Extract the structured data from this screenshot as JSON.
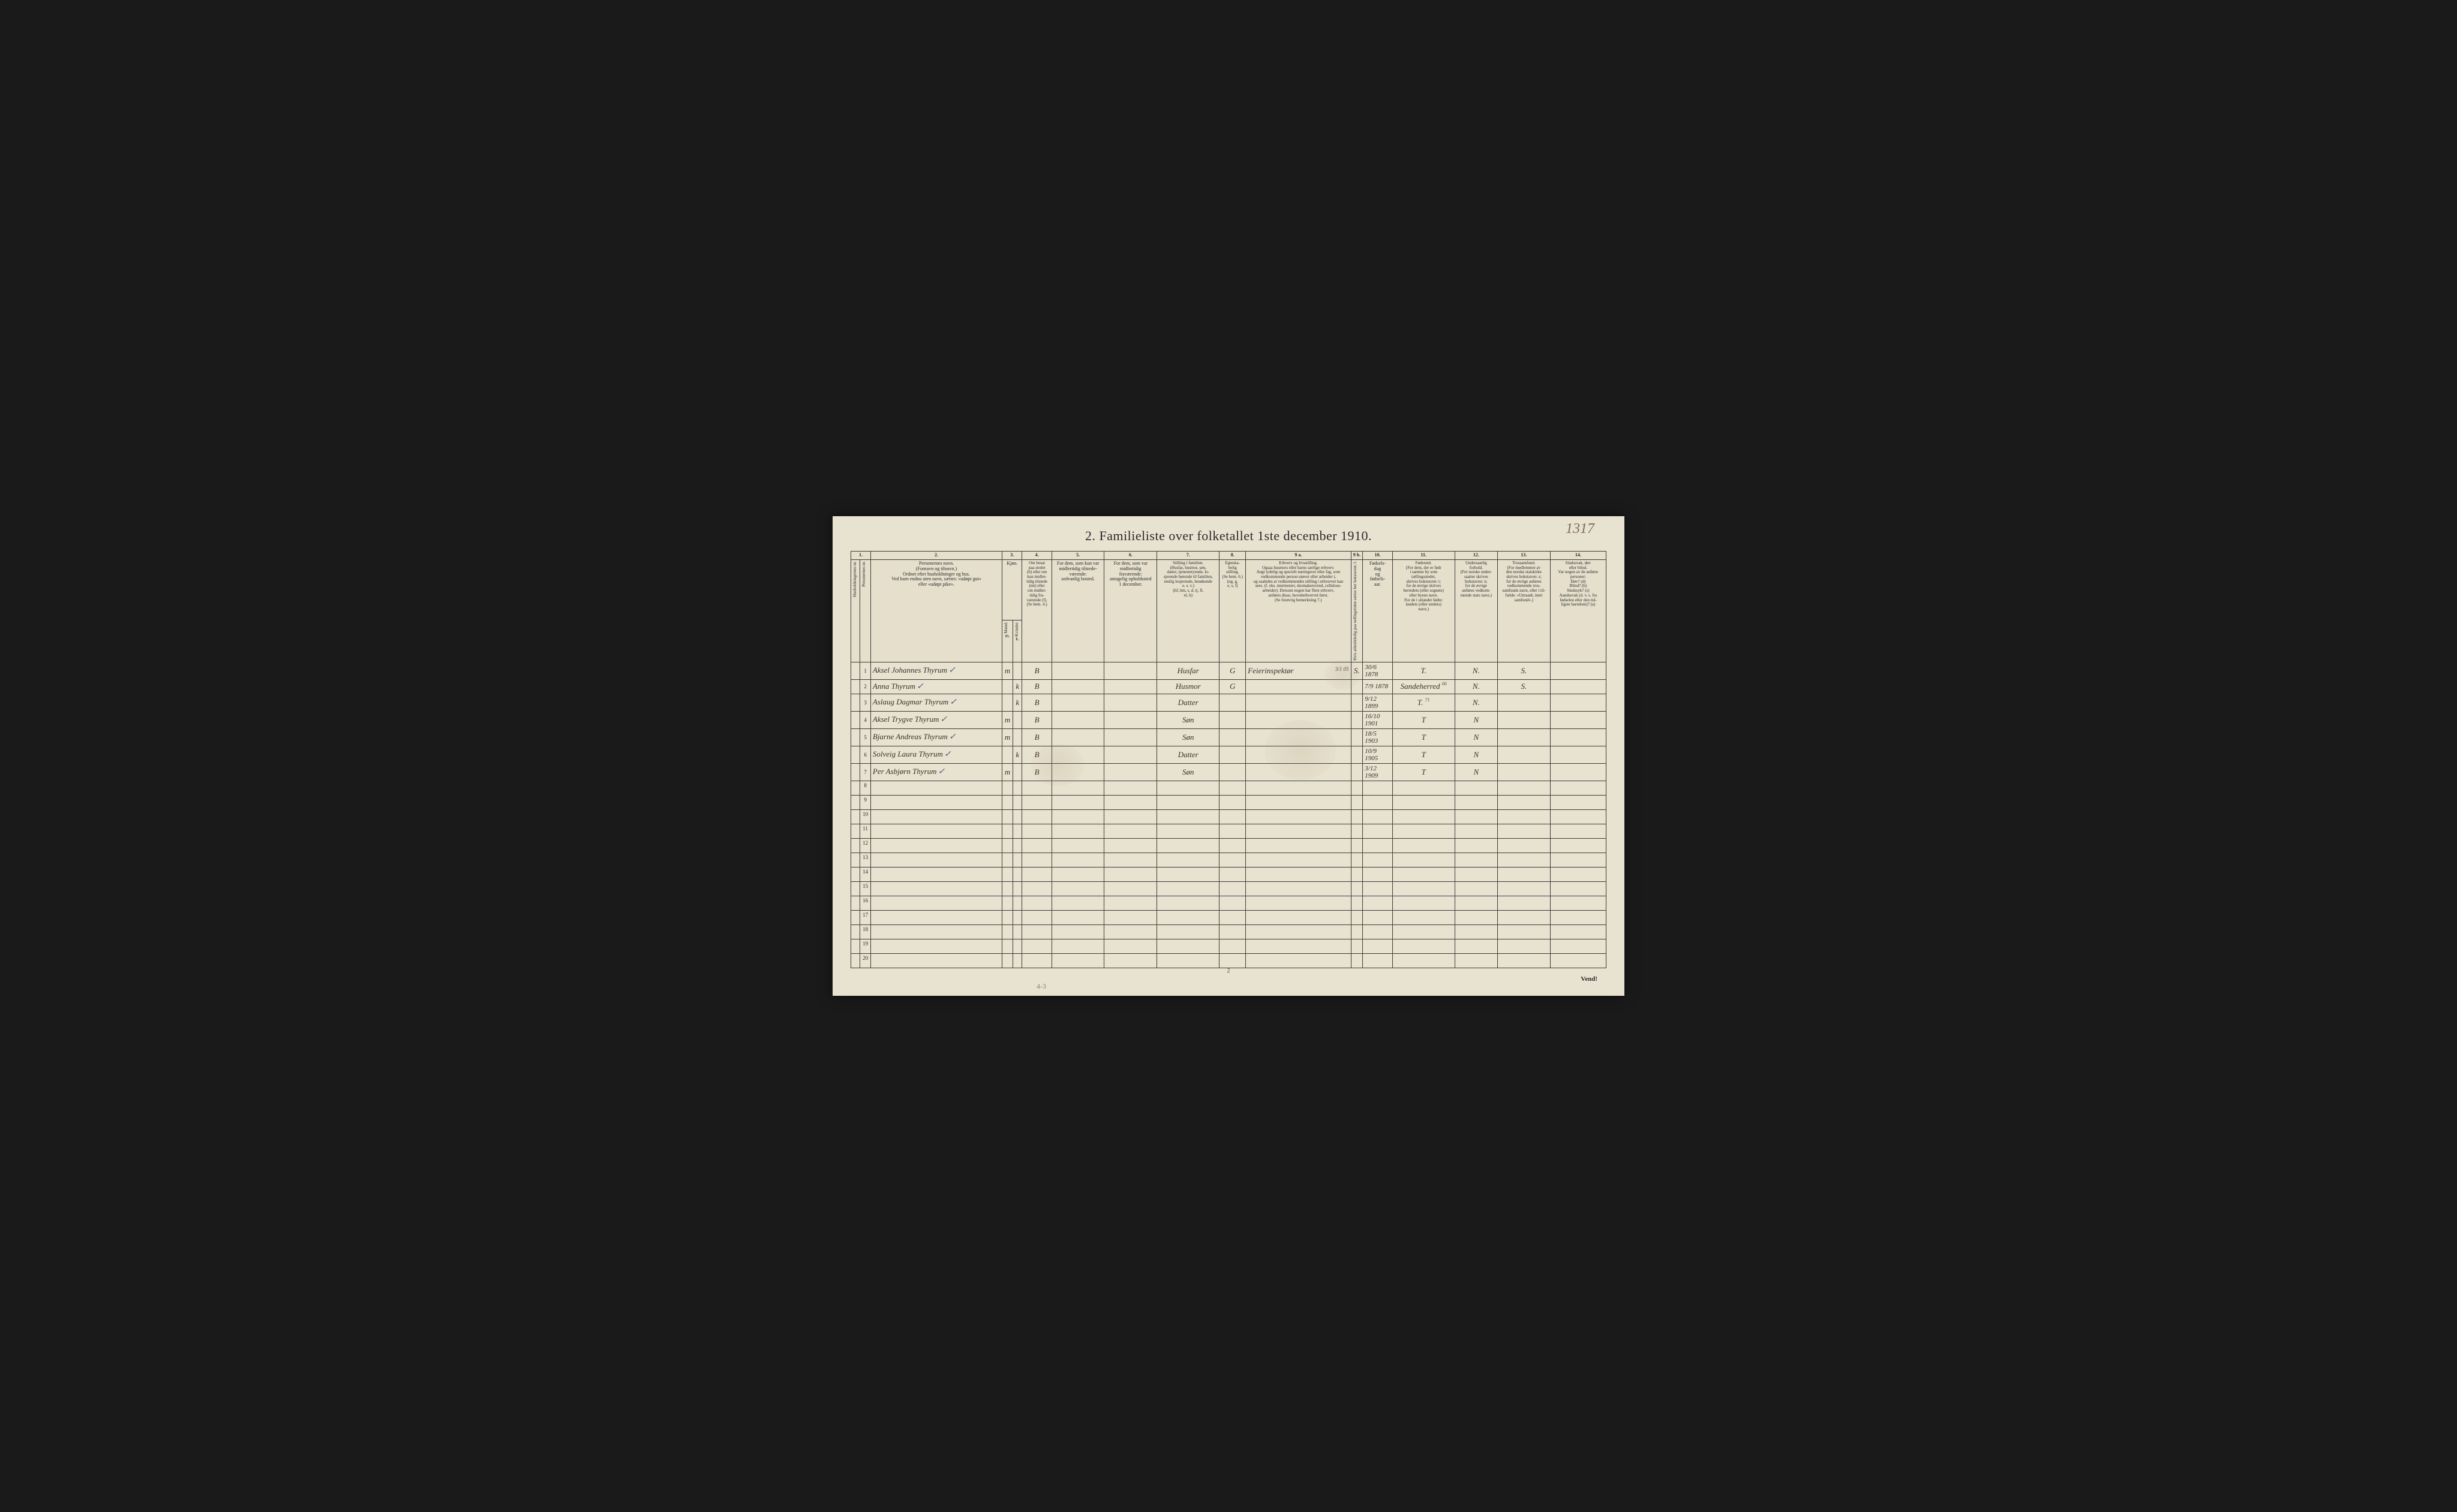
{
  "pageNumberHandwritten": "1317",
  "title": "2.  Familieliste over folketallet 1ste december 1910.",
  "colNumbers": [
    "1.",
    "2.",
    "3.",
    "4.",
    "5.",
    "6.",
    "7.",
    "8.",
    "9 a.",
    "9 b.",
    "10.",
    "11.",
    "12.",
    "13.",
    "14."
  ],
  "headers": {
    "col1": "Husholdningernes nr.",
    "col2": "Personernes nr.",
    "col3": "Personernes navn.\n(Fornavn og tilnavn.)\nOrdnet efter husholdninger og hus.\nVed barn endnu uten navn, sættes: «udøpt gut»\neller «udøpt pike».",
    "col4a": "Kjøn.",
    "col4b": "Mænd.",
    "col4c": "Kvinder.",
    "col4d": "m.",
    "col4e": "k.",
    "col5": "Om bosat\npaa stedet\n(b) eller om\nkun midler-\ntidig tilstede\n(mt) eller\nom midler-\ntidig fra-\nværende (f).\n(Se bem. 4.)",
    "col6": "For dem, som kun var\nmidlertidig tilstede-\nværende:\nsedvanlig bosted.",
    "col7": "For dem, som var\nmidlertidig\nfraværende:\nantagelig opholdssted\n1 december.",
    "col8": "Stilling i familien.\n(Husfar, husmor, søn,\ndatter, tjenestetyende, lo-\nsjerende hørende til familien,\nenslig losjerende, besøkende\no. s. v.)\n(hf, hm, s, d, tj, fl,\nel, b)",
    "col9": "Egteska-\nbelig\nstilling.\n(Se bem. 6.)\n(ug, g,\ne, s, f)",
    "col10": "Erhverv og livsstilling.\nOgsaa husmors eller barns særlige erhverv.\nAngi tydelig og specielt næringsvei eller fag, som\nvedkommende person utøver eller arbeider i,\nog saaledes at vedkommendes stilling i erhvervet kan\nsees. (f. eks. murmester, skomakersvend, cellulose-\narbeider). Dersom nogen har flere erhverv,\nanføres disse, hovederhvervet først.\n(Se forøvrig bemerkning 7.)",
    "col11": "Hvis arbeidsledig\npaa tællingstiden sættes\nher bokstaven: l.",
    "col12": "Fødsels-\ndag\nog\nfødsels-\naar.",
    "col13": "Fødested.\n(For dem, der er født\ni samme by som\ntællingsstedet,\nskrives bokstaven: t;\nfor de øvrige skrives\nherredets (eller sognets)\neller byens navn.\nFor de i utlandet fødte:\nlandets (eller stedets)\nnavn.)",
    "col14": "Undersaatlig\nforhold.\n(For norske under-\nsaatter skrives\nbokstaven: n;\nfor de øvrige\nanføres vedkom-\nmende stats navn.)",
    "col15": "Trossamfund.\n(For medlemmer av\nden norske statskirke\nskrives bokstaven: s;\nfor de øvrige anføres\nvedkommende tros-\nsamfunds navn, eller i til-\nfælde: «Uttraadt, intet\nsamfund».)",
    "col16": "Sindssvak, døv\neller blind.\nVar nogen av de anførte\npersoner:\nDøv?        (d)\nBlind?      (b)\nSindssyk?  (s)\nAandssvak (d. v. s. fra\nfødselen eller den tid-\nligste barndom)?  (a)"
  },
  "rows": [
    {
      "num": "1",
      "name": "Aksel Johannes Thyrum",
      "check": "✓",
      "m": "m",
      "k": "",
      "bosat": "B",
      "col7": "",
      "col8": "",
      "stilling": "Husfar",
      "egte": "G",
      "erhverv": "Feierinspektør",
      "annotation": "3/1 05",
      "l": "S.",
      "fodsel": "30/6 1878",
      "fodested": "T.",
      "under": "N.",
      "tros": "S.",
      "sind": ""
    },
    {
      "num": "2",
      "name": "Anna Thyrum",
      "check": "✓",
      "m": "",
      "k": "k",
      "bosat": "B",
      "col7": "",
      "col8": "",
      "stilling": "Husmor",
      "egte": "G",
      "erhverv": "",
      "annotation": "",
      "l": "",
      "fodsel": "7/9 1878",
      "fodested": "Sandeherred",
      "fodnote": "06",
      "under": "N.",
      "tros": "S.",
      "sind": ""
    },
    {
      "num": "3",
      "name": "Aslaug Dagmar Thyrum",
      "check": "✓",
      "m": "",
      "k": "k",
      "bosat": "B",
      "col7": "",
      "col8": "",
      "stilling": "Datter",
      "egte": "",
      "erhverv": "",
      "annotation": "",
      "l": "",
      "fodsel": "9/12 1899",
      "fodested": "T.",
      "fodnote": "71",
      "under": "N.",
      "tros": "",
      "sind": ""
    },
    {
      "num": "4",
      "name": "Aksel Trygve Thyrum",
      "check": "✓",
      "m": "m",
      "k": "",
      "bosat": "B",
      "col7": "",
      "col8": "",
      "stilling": "Søn",
      "egte": "",
      "erhverv": "",
      "annotation": "",
      "l": "",
      "fodsel": "16/10 1901",
      "fodested": "T",
      "under": "N",
      "tros": "",
      "sind": ""
    },
    {
      "num": "5",
      "name": "Bjarne Andreas Thyrum",
      "check": "✓",
      "m": "m",
      "k": "",
      "bosat": "B",
      "col7": "",
      "col8": "",
      "stilling": "Søn",
      "egte": "",
      "erhverv": "",
      "annotation": "",
      "l": "",
      "fodsel": "18/5 1903",
      "fodested": "T",
      "under": "N",
      "tros": "",
      "sind": ""
    },
    {
      "num": "6",
      "name": "Solveig Laura Thyrum",
      "check": "✓",
      "m": "",
      "k": "k",
      "bosat": "B",
      "col7": "",
      "col8": "",
      "stilling": "Datter",
      "egte": "",
      "erhverv": "",
      "annotation": "",
      "l": "",
      "fodsel": "10/9 1905",
      "fodested": "T",
      "under": "N",
      "tros": "",
      "sind": ""
    },
    {
      "num": "7",
      "name": "Per Asbjørn Thyrum",
      "check": "✓",
      "m": "m",
      "k": "",
      "bosat": "B",
      "col7": "",
      "col8": "",
      "stilling": "Søn",
      "egte": "",
      "erhverv": "",
      "annotation": "",
      "l": "",
      "fodsel": "3/12 1909",
      "fodested": "T",
      "under": "N",
      "tros": "",
      "sind": ""
    }
  ],
  "emptyRowStart": 8,
  "emptyRowEnd": 20,
  "footerPage": "2",
  "vend": "Vend!",
  "pencilNote": "4-3",
  "colors": {
    "paper": "#e8e2d0",
    "ink": "#2a2a2a",
    "handwriting": "#3a3228",
    "ruling": "#3a3a3a",
    "checkmark": "#4a5a7a"
  }
}
